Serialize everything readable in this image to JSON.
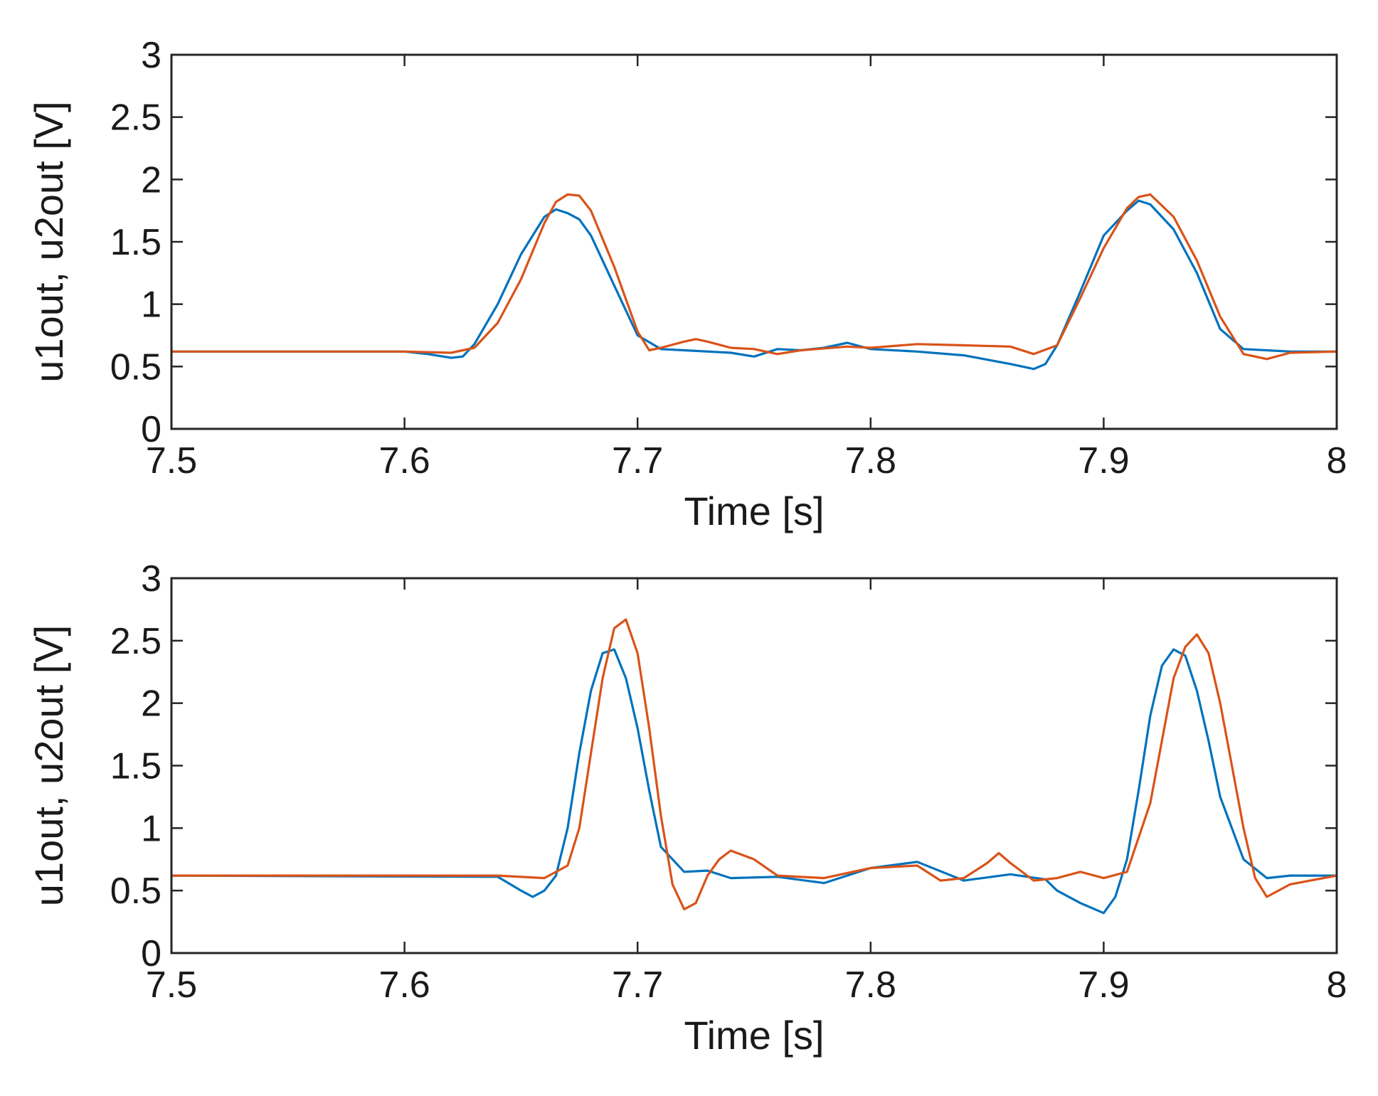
{
  "chart_data": [
    {
      "type": "line",
      "title": "",
      "xlabel": "Time [s]",
      "ylabel": "u1out, u2out [V]",
      "xlim": [
        7.5,
        8.0
      ],
      "ylim": [
        0,
        3
      ],
      "x_ticks": [
        7.5,
        7.6,
        7.7,
        7.8,
        7.9,
        8.0
      ],
      "x_tick_labels": [
        "7.5",
        "7.6",
        "7.7",
        "7.8",
        "7.9",
        "8"
      ],
      "y_ticks": [
        0,
        0.5,
        1,
        1.5,
        2,
        2.5,
        3
      ],
      "y_tick_labels": [
        "0",
        "0.5",
        "1",
        "1.5",
        "2",
        "2.5",
        "3"
      ],
      "grid": false,
      "legend": "none",
      "series": [
        {
          "name": "u1out",
          "color": "#0072BD",
          "x": [
            7.5,
            7.6,
            7.61,
            7.62,
            7.625,
            7.63,
            7.64,
            7.65,
            7.66,
            7.665,
            7.67,
            7.675,
            7.68,
            7.69,
            7.7,
            7.71,
            7.72,
            7.74,
            7.75,
            7.76,
            7.77,
            7.78,
            7.79,
            7.8,
            7.82,
            7.84,
            7.86,
            7.87,
            7.875,
            7.88,
            7.89,
            7.9,
            7.91,
            7.915,
            7.92,
            7.93,
            7.94,
            7.95,
            7.96,
            7.98,
            8.0
          ],
          "y": [
            0.62,
            0.62,
            0.6,
            0.57,
            0.58,
            0.68,
            1.0,
            1.4,
            1.7,
            1.76,
            1.73,
            1.68,
            1.55,
            1.15,
            0.75,
            0.64,
            0.63,
            0.61,
            0.58,
            0.64,
            0.63,
            0.65,
            0.69,
            0.64,
            0.62,
            0.59,
            0.52,
            0.48,
            0.52,
            0.67,
            1.1,
            1.55,
            1.75,
            1.83,
            1.8,
            1.6,
            1.25,
            0.8,
            0.64,
            0.62,
            0.62
          ]
        },
        {
          "name": "u2out",
          "color": "#D95319",
          "x": [
            7.5,
            7.6,
            7.62,
            7.63,
            7.64,
            7.65,
            7.66,
            7.665,
            7.67,
            7.675,
            7.68,
            7.69,
            7.7,
            7.705,
            7.71,
            7.72,
            7.725,
            7.73,
            7.74,
            7.75,
            7.76,
            7.77,
            7.79,
            7.8,
            7.82,
            7.84,
            7.86,
            7.87,
            7.88,
            7.89,
            7.9,
            7.91,
            7.915,
            7.92,
            7.93,
            7.94,
            7.95,
            7.96,
            7.97,
            7.98,
            8.0
          ],
          "y": [
            0.62,
            0.62,
            0.61,
            0.65,
            0.85,
            1.2,
            1.65,
            1.82,
            1.88,
            1.87,
            1.75,
            1.3,
            0.78,
            0.63,
            0.65,
            0.7,
            0.72,
            0.7,
            0.65,
            0.64,
            0.6,
            0.63,
            0.66,
            0.65,
            0.68,
            0.67,
            0.66,
            0.6,
            0.67,
            1.05,
            1.45,
            1.77,
            1.86,
            1.88,
            1.7,
            1.35,
            0.9,
            0.6,
            0.56,
            0.61,
            0.62
          ]
        }
      ]
    },
    {
      "type": "line",
      "title": "",
      "xlabel": "Time [s]",
      "ylabel": "u1out, u2out [V]",
      "xlim": [
        7.5,
        8.0
      ],
      "ylim": [
        0,
        3
      ],
      "x_ticks": [
        7.5,
        7.6,
        7.7,
        7.8,
        7.9,
        8.0
      ],
      "x_tick_labels": [
        "7.5",
        "7.6",
        "7.7",
        "7.8",
        "7.9",
        "8"
      ],
      "y_ticks": [
        0,
        0.5,
        1,
        1.5,
        2,
        2.5,
        3
      ],
      "y_tick_labels": [
        "0",
        "0.5",
        "1",
        "1.5",
        "2",
        "2.5",
        "3"
      ],
      "grid": false,
      "legend": "none",
      "series": [
        {
          "name": "u1out",
          "color": "#0072BD",
          "x": [
            7.5,
            7.64,
            7.65,
            7.655,
            7.66,
            7.665,
            7.67,
            7.675,
            7.68,
            7.685,
            7.69,
            7.695,
            7.7,
            7.705,
            7.71,
            7.72,
            7.73,
            7.74,
            7.76,
            7.78,
            7.8,
            7.82,
            7.84,
            7.86,
            7.875,
            7.88,
            7.89,
            7.9,
            7.905,
            7.91,
            7.915,
            7.92,
            7.925,
            7.93,
            7.935,
            7.94,
            7.945,
            7.95,
            7.96,
            7.97,
            7.98,
            8.0
          ],
          "y": [
            0.62,
            0.61,
            0.5,
            0.45,
            0.5,
            0.62,
            1.0,
            1.6,
            2.1,
            2.4,
            2.43,
            2.2,
            1.8,
            1.3,
            0.85,
            0.65,
            0.66,
            0.6,
            0.61,
            0.56,
            0.68,
            0.73,
            0.58,
            0.63,
            0.59,
            0.5,
            0.4,
            0.32,
            0.45,
            0.75,
            1.3,
            1.9,
            2.3,
            2.43,
            2.38,
            2.1,
            1.7,
            1.25,
            0.75,
            0.6,
            0.62,
            0.62
          ]
        },
        {
          "name": "u2out",
          "color": "#D95319",
          "x": [
            7.5,
            7.64,
            7.66,
            7.67,
            7.675,
            7.68,
            7.685,
            7.69,
            7.695,
            7.7,
            7.705,
            7.71,
            7.715,
            7.72,
            7.725,
            7.73,
            7.735,
            7.74,
            7.75,
            7.76,
            7.78,
            7.8,
            7.82,
            7.83,
            7.84,
            7.85,
            7.855,
            7.86,
            7.87,
            7.88,
            7.89,
            7.9,
            7.91,
            7.92,
            7.925,
            7.93,
            7.935,
            7.94,
            7.945,
            7.95,
            7.955,
            7.96,
            7.965,
            7.97,
            7.98,
            8.0
          ],
          "y": [
            0.62,
            0.62,
            0.6,
            0.7,
            1.0,
            1.6,
            2.2,
            2.6,
            2.67,
            2.4,
            1.8,
            1.1,
            0.55,
            0.35,
            0.4,
            0.62,
            0.75,
            0.82,
            0.75,
            0.62,
            0.6,
            0.68,
            0.7,
            0.58,
            0.6,
            0.72,
            0.8,
            0.72,
            0.58,
            0.6,
            0.65,
            0.6,
            0.65,
            1.2,
            1.7,
            2.2,
            2.45,
            2.55,
            2.4,
            2.0,
            1.5,
            1.0,
            0.6,
            0.45,
            0.55,
            0.62
          ]
        }
      ]
    }
  ]
}
